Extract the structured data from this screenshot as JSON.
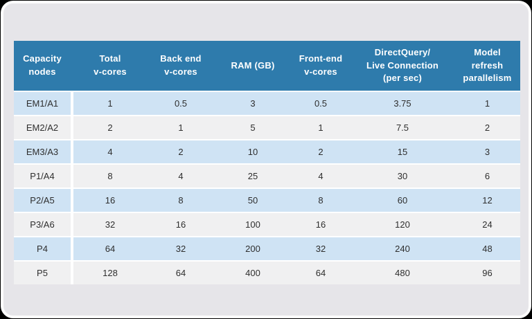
{
  "card": {
    "background_color": "#e6e5e9",
    "border_color": "#fdfdfd"
  },
  "table": {
    "header_bg_color": "#2e7bac",
    "header_text_color": "#ffffff",
    "row_color_odd": "#cfe3f4",
    "row_color_even": "#f0f0f1",
    "columns": [
      {
        "label": "Capacity\nnodes"
      },
      {
        "label": "Total\nv-cores"
      },
      {
        "label": "Back end\nv-cores"
      },
      {
        "label": "RAM (GB)"
      },
      {
        "label": "Front-end\nv-cores"
      },
      {
        "label": "DirectQuery/\nLive Connection\n(per sec)"
      },
      {
        "label": "Model\nrefresh\nparallelism"
      }
    ],
    "rows": [
      [
        "EM1/A1",
        "1",
        "0.5",
        "3",
        "0.5",
        "3.75",
        "1"
      ],
      [
        "EM2/A2",
        "2",
        "1",
        "5",
        "1",
        "7.5",
        "2"
      ],
      [
        "EM3/A3",
        "4",
        "2",
        "10",
        "2",
        "15",
        "3"
      ],
      [
        "P1/A4",
        "8",
        "4",
        "25",
        "4",
        "30",
        "6"
      ],
      [
        "P2/A5",
        "16",
        "8",
        "50",
        "8",
        "60",
        "12"
      ],
      [
        "P3/A6",
        "32",
        "16",
        "100",
        "16",
        "120",
        "24"
      ],
      [
        "P4",
        "64",
        "32",
        "200",
        "32",
        "240",
        "48"
      ],
      [
        "P5",
        "128",
        "64",
        "400",
        "64",
        "480",
        "96"
      ]
    ]
  },
  "chart_data": {
    "type": "table",
    "title": "",
    "columns": [
      "Capacity nodes",
      "Total v-cores",
      "Back end v-cores",
      "RAM (GB)",
      "Front-end v-cores",
      "DirectQuery/ Live Connection (per sec)",
      "Model refresh parallelism"
    ],
    "rows": [
      [
        "EM1/A1",
        1,
        0.5,
        3,
        0.5,
        3.75,
        1
      ],
      [
        "EM2/A2",
        2,
        1,
        5,
        1,
        7.5,
        2
      ],
      [
        "EM3/A3",
        4,
        2,
        10,
        2,
        15,
        3
      ],
      [
        "P1/A4",
        8,
        4,
        25,
        4,
        30,
        6
      ],
      [
        "P2/A5",
        16,
        8,
        50,
        8,
        60,
        12
      ],
      [
        "P3/A6",
        32,
        16,
        100,
        16,
        120,
        24
      ],
      [
        "P4",
        64,
        32,
        200,
        32,
        240,
        48
      ],
      [
        "P5",
        128,
        64,
        400,
        64,
        480,
        96
      ]
    ]
  }
}
